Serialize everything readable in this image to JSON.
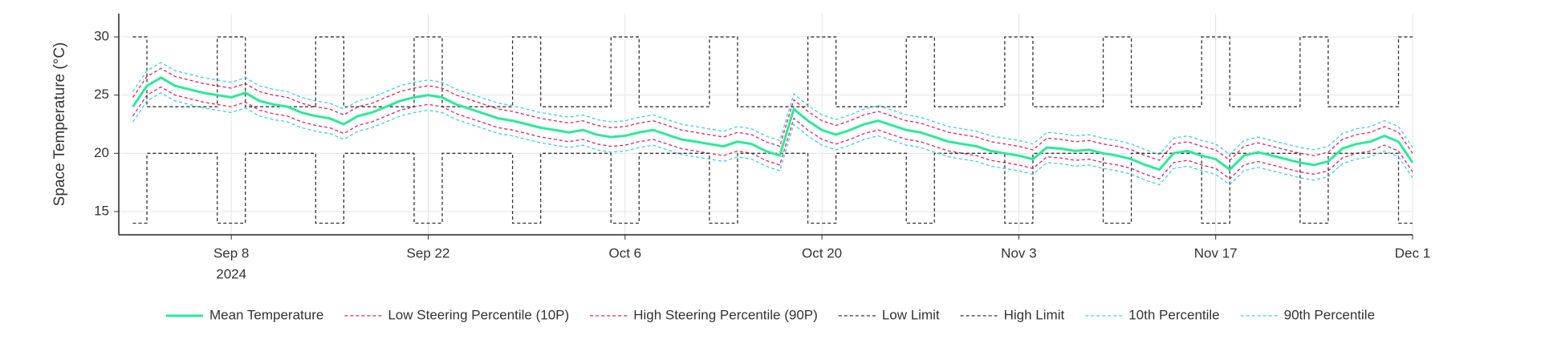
{
  "chart_data": {
    "type": "line",
    "y_label": "Space Temperature (°C)",
    "x_year_label": "2024",
    "x": [
      "2024-09-01",
      "2024-09-02",
      "2024-09-03",
      "2024-09-04",
      "2024-09-05",
      "2024-09-06",
      "2024-09-07",
      "2024-09-08",
      "2024-09-09",
      "2024-09-10",
      "2024-09-11",
      "2024-09-12",
      "2024-09-13",
      "2024-09-14",
      "2024-09-15",
      "2024-09-16",
      "2024-09-17",
      "2024-09-18",
      "2024-09-19",
      "2024-09-20",
      "2024-09-21",
      "2024-09-22",
      "2024-09-23",
      "2024-09-24",
      "2024-09-25",
      "2024-09-26",
      "2024-09-27",
      "2024-09-28",
      "2024-09-29",
      "2024-09-30",
      "2024-10-01",
      "2024-10-02",
      "2024-10-03",
      "2024-10-04",
      "2024-10-05",
      "2024-10-06",
      "2024-10-07",
      "2024-10-08",
      "2024-10-09",
      "2024-10-10",
      "2024-10-11",
      "2024-10-12",
      "2024-10-13",
      "2024-10-14",
      "2024-10-15",
      "2024-10-16",
      "2024-10-17",
      "2024-10-18",
      "2024-10-19",
      "2024-10-20",
      "2024-10-21",
      "2024-10-22",
      "2024-10-23",
      "2024-10-24",
      "2024-10-25",
      "2024-10-26",
      "2024-10-27",
      "2024-10-28",
      "2024-10-29",
      "2024-10-30",
      "2024-10-31",
      "2024-11-01",
      "2024-11-02",
      "2024-11-03",
      "2024-11-04",
      "2024-11-05",
      "2024-11-06",
      "2024-11-07",
      "2024-11-08",
      "2024-11-09",
      "2024-11-10",
      "2024-11-11",
      "2024-11-12",
      "2024-11-13",
      "2024-11-14",
      "2024-11-15",
      "2024-11-16",
      "2024-11-17",
      "2024-11-18",
      "2024-11-19",
      "2024-11-20",
      "2024-11-21",
      "2024-11-22",
      "2024-11-23",
      "2024-11-24",
      "2024-11-25",
      "2024-11-26",
      "2024-11-27",
      "2024-11-28",
      "2024-11-29",
      "2024-11-30",
      "2024-12-01"
    ],
    "series": [
      {
        "name": "Mean Temperature",
        "color": "#2ee89a",
        "line_style": "solid",
        "values": [
          24,
          25.8,
          26.5,
          25.8,
          25.5,
          25.2,
          25,
          24.8,
          25.2,
          24.5,
          24.2,
          24,
          23.5,
          23.2,
          23,
          22.5,
          23.2,
          23.5,
          24,
          24.5,
          24.8,
          25,
          24.8,
          24.2,
          23.8,
          23.4,
          23,
          22.8,
          22.5,
          22.2,
          22,
          21.8,
          22,
          21.6,
          21.4,
          21.5,
          21.8,
          22,
          21.6,
          21.2,
          21,
          20.8,
          20.6,
          21,
          20.8,
          20.2,
          19.8,
          23.8,
          22.8,
          22,
          21.6,
          22,
          22.5,
          22.8,
          22.4,
          22,
          21.8,
          21.4,
          21,
          20.8,
          20.6,
          20.2,
          20,
          19.8,
          19.5,
          20.5,
          20.4,
          20.2,
          20.3,
          20,
          19.8,
          19.5,
          19,
          18.6,
          20,
          20.2,
          19.8,
          19.5,
          18.6,
          19.8,
          20.1,
          19.8,
          19.5,
          19.2,
          19,
          19.3,
          20.4,
          20.8,
          21,
          21.5,
          21,
          19.2
        ]
      },
      {
        "name": "Low Steering Percentile (10P)",
        "color": "#e0245e",
        "line_style": "dashed",
        "values": [
          23.2,
          25,
          25.7,
          25,
          24.7,
          24.4,
          24.2,
          24,
          24.4,
          23.7,
          23.4,
          23.2,
          22.7,
          22.4,
          22.2,
          21.7,
          22.4,
          22.7,
          23.2,
          23.7,
          24,
          24.2,
          24,
          23.4,
          23,
          22.6,
          22.2,
          22,
          21.7,
          21.4,
          21.2,
          21,
          21.2,
          20.8,
          20.6,
          20.7,
          21,
          21.2,
          20.8,
          20.4,
          20.2,
          20,
          19.8,
          20.2,
          20,
          19.4,
          19,
          23,
          22,
          21.2,
          20.8,
          21.2,
          21.7,
          22,
          21.6,
          21.2,
          21,
          20.6,
          20.2,
          20,
          19.8,
          19.4,
          19.2,
          19,
          18.7,
          19.7,
          19.6,
          19.4,
          19.5,
          19.2,
          19,
          18.7,
          18.2,
          17.8,
          19.2,
          19.4,
          19,
          18.7,
          17.8,
          19,
          19.3,
          19,
          18.7,
          18.4,
          18.2,
          18.5,
          19.6,
          20,
          20.2,
          20.7,
          20.2,
          18.4
        ]
      },
      {
        "name": "High Steering Percentile (90P)",
        "color": "#e0245e",
        "line_style": "dashed",
        "values": [
          24.8,
          26.6,
          27.3,
          26.6,
          26.3,
          26,
          25.8,
          25.6,
          26,
          25.3,
          25,
          24.8,
          24.3,
          24,
          23.8,
          23.3,
          24,
          24.3,
          24.8,
          25.3,
          25.6,
          25.8,
          25.6,
          25,
          24.6,
          24.2,
          23.8,
          23.6,
          23.3,
          23,
          22.8,
          22.6,
          22.8,
          22.4,
          22.2,
          22.3,
          22.6,
          22.8,
          22.4,
          22,
          21.8,
          21.6,
          21.4,
          21.8,
          21.6,
          21,
          20.6,
          24.6,
          23.6,
          22.8,
          22.4,
          22.8,
          23.3,
          23.6,
          23.2,
          22.8,
          22.6,
          22.2,
          21.8,
          21.6,
          21.4,
          21,
          20.8,
          20.6,
          20.3,
          21.3,
          21.2,
          21,
          21.1,
          20.8,
          20.6,
          20.3,
          19.8,
          19.4,
          20.8,
          21,
          20.6,
          20.3,
          19.4,
          20.6,
          20.9,
          20.6,
          20.3,
          20,
          19.8,
          20.1,
          21.2,
          21.6,
          21.8,
          22.3,
          21.8,
          20
        ]
      },
      {
        "name": "Low Limit",
        "color": "#333333",
        "line_style": "dashed",
        "step": true,
        "values": [
          14,
          20,
          20,
          20,
          20,
          20,
          14,
          14,
          20,
          20,
          20,
          20,
          20,
          14,
          14,
          20,
          20,
          20,
          20,
          20,
          14,
          14,
          20,
          20,
          20,
          20,
          20,
          14,
          14,
          20,
          20,
          20,
          20,
          20,
          14,
          14,
          20,
          20,
          20,
          20,
          20,
          14,
          14,
          20,
          20,
          20,
          20,
          20,
          14,
          14,
          20,
          20,
          20,
          20,
          20,
          14,
          14,
          20,
          20,
          20,
          20,
          20,
          14,
          14,
          20,
          20,
          20,
          20,
          20,
          14,
          14,
          20,
          20,
          20,
          20,
          20,
          14,
          14,
          20,
          20,
          20,
          20,
          20,
          14,
          14,
          20,
          20,
          20,
          20,
          20,
          14,
          14
        ]
      },
      {
        "name": "High Limit",
        "color": "#333333",
        "line_style": "dashed",
        "step": true,
        "values": [
          30,
          24,
          24,
          24,
          24,
          24,
          30,
          30,
          24,
          24,
          24,
          24,
          24,
          30,
          30,
          24,
          24,
          24,
          24,
          24,
          30,
          30,
          24,
          24,
          24,
          24,
          24,
          30,
          30,
          24,
          24,
          24,
          24,
          24,
          30,
          30,
          24,
          24,
          24,
          24,
          24,
          30,
          30,
          24,
          24,
          24,
          24,
          24,
          30,
          30,
          24,
          24,
          24,
          24,
          24,
          30,
          30,
          24,
          24,
          24,
          24,
          24,
          30,
          30,
          24,
          24,
          24,
          24,
          24,
          30,
          30,
          24,
          24,
          24,
          24,
          24,
          30,
          30,
          24,
          24,
          24,
          24,
          24,
          30,
          30,
          24,
          24,
          24,
          24,
          24,
          30,
          30
        ]
      },
      {
        "name": "10th Percentile",
        "color": "#3fd0e0",
        "line_style": "dashed",
        "values": [
          22.7,
          24.5,
          25.2,
          24.5,
          24.2,
          23.9,
          23.7,
          23.5,
          23.9,
          23.2,
          22.9,
          22.7,
          22.2,
          21.9,
          21.7,
          21.2,
          21.9,
          22.2,
          22.7,
          23.2,
          23.5,
          23.7,
          23.5,
          22.9,
          22.5,
          22.1,
          21.7,
          21.5,
          21.2,
          20.9,
          20.7,
          20.5,
          20.7,
          20.3,
          20.1,
          20.2,
          20.5,
          20.7,
          20.3,
          19.9,
          19.7,
          19.5,
          19.3,
          19.7,
          19.5,
          18.9,
          18.5,
          22.5,
          21.5,
          20.7,
          20.3,
          20.7,
          21.2,
          21.5,
          21.1,
          20.7,
          20.5,
          20.1,
          19.7,
          19.5,
          19.3,
          18.9,
          18.7,
          18.5,
          18.2,
          19.2,
          19.1,
          18.9,
          19,
          18.7,
          18.5,
          18.2,
          17.7,
          17.3,
          18.7,
          18.9,
          18.5,
          18.2,
          17.3,
          18.5,
          18.8,
          18.5,
          18.2,
          17.9,
          17.7,
          18,
          19.1,
          19.5,
          19.7,
          20.2,
          19.7,
          17.9
        ]
      },
      {
        "name": "90th Percentile",
        "color": "#3fd0e0",
        "line_style": "dashed",
        "values": [
          25.3,
          27.1,
          27.8,
          27.1,
          26.8,
          26.5,
          26.3,
          26.1,
          26.5,
          25.8,
          25.5,
          25.3,
          24.8,
          24.5,
          24.3,
          23.8,
          24.5,
          24.8,
          25.3,
          25.8,
          26.1,
          26.3,
          26.1,
          25.5,
          25.1,
          24.7,
          24.3,
          24.1,
          23.8,
          23.5,
          23.3,
          23.1,
          23.3,
          22.9,
          22.7,
          22.8,
          23.1,
          23.3,
          22.9,
          22.5,
          22.3,
          22.1,
          21.9,
          22.3,
          22.1,
          21.5,
          21.1,
          25.1,
          24.1,
          23.3,
          22.9,
          23.3,
          23.8,
          24.1,
          23.7,
          23.3,
          23.1,
          22.7,
          22.3,
          22.1,
          21.9,
          21.5,
          21.3,
          21.1,
          20.8,
          21.8,
          21.7,
          21.5,
          21.6,
          21.3,
          21.1,
          20.8,
          20.3,
          19.9,
          21.3,
          21.5,
          21.1,
          20.8,
          19.9,
          21.1,
          21.4,
          21.1,
          20.8,
          20.5,
          20.3,
          20.6,
          21.7,
          22.1,
          22.3,
          22.8,
          22.3,
          20.5
        ]
      }
    ],
    "xlim": [
      "2024-08-31",
      "2024-12-01"
    ],
    "xticks": [
      {
        "value": "2024-09-08",
        "label": "Sep 8"
      },
      {
        "value": "2024-09-22",
        "label": "Sep 22"
      },
      {
        "value": "2024-10-06",
        "label": "Oct 6"
      },
      {
        "value": "2024-10-20",
        "label": "Oct 20"
      },
      {
        "value": "2024-11-03",
        "label": "Nov 3"
      },
      {
        "value": "2024-11-17",
        "label": "Nov 17"
      },
      {
        "value": "2024-12-01",
        "label": "Dec 1"
      }
    ],
    "ylim": [
      13,
      32
    ],
    "yticks": [
      15,
      20,
      25,
      30
    ],
    "grid": true,
    "legend": "bottom"
  }
}
